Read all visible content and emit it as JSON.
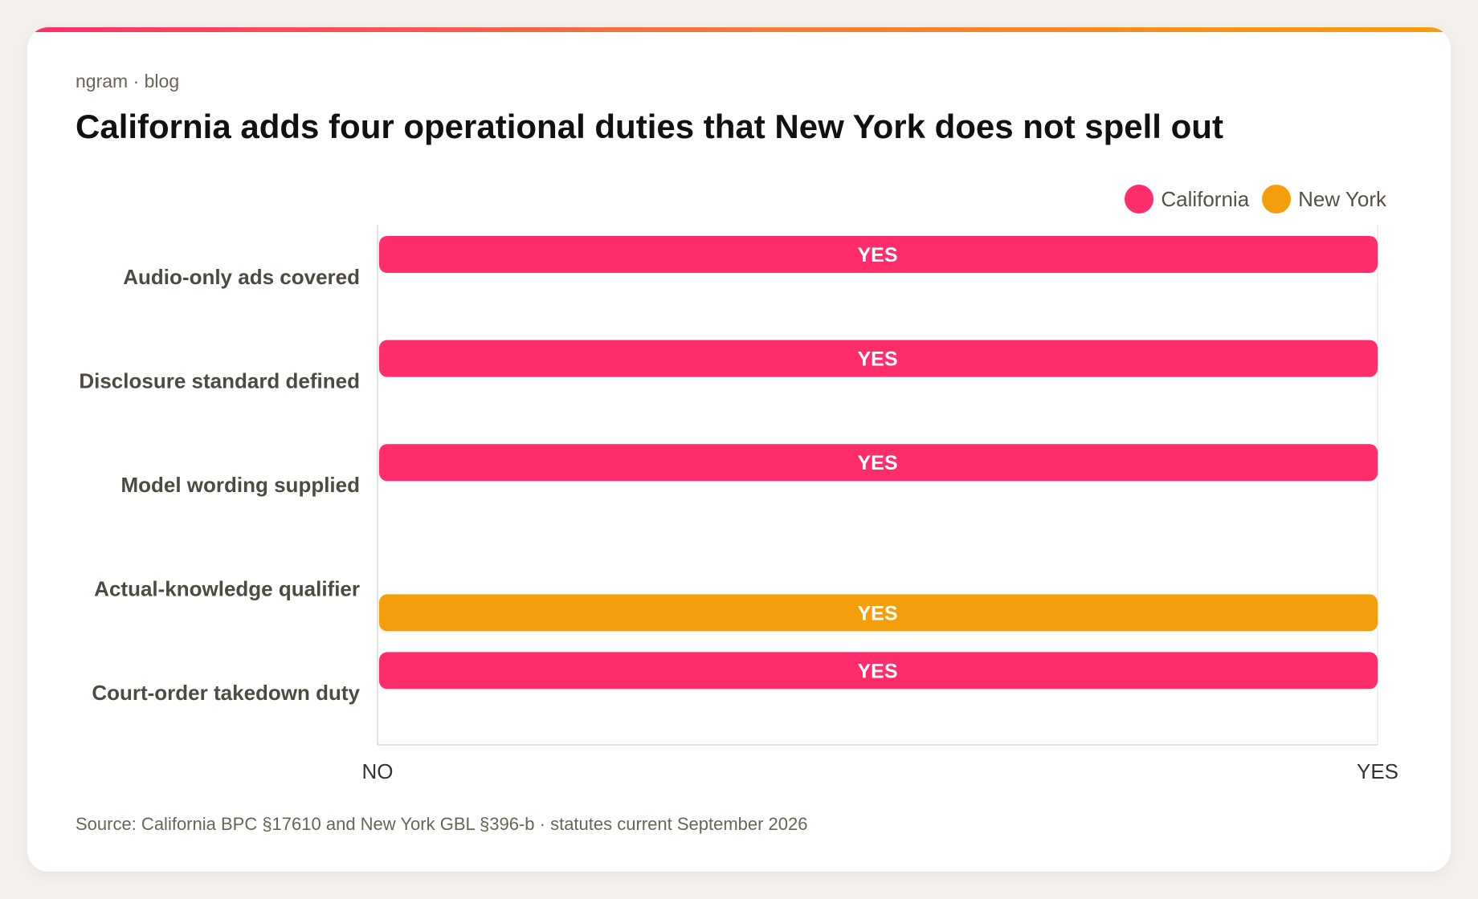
{
  "brand": "ngram · blog",
  "title": "California adds four operational duties that New York does not spell out",
  "source": "Source: California BPC §17610 and New York GBL §396-b · statutes current September 2026",
  "chart_data": {
    "type": "bar",
    "orientation": "horizontal",
    "categories": [
      "Audio-only ads covered",
      "Disclosure standard defined",
      "Model wording supplied",
      "Actual-knowledge qualifier",
      "Court-order takedown duty"
    ],
    "series": [
      {
        "name": "California",
        "color": "#ff2d6b",
        "values": [
          1,
          1,
          1,
          0,
          1
        ],
        "labels": [
          "YES",
          "YES",
          "YES",
          "",
          "YES"
        ]
      },
      {
        "name": "New York",
        "color": "#f59e0b",
        "values": [
          0,
          0,
          0,
          1,
          0
        ],
        "labels": [
          "",
          "",
          "",
          "YES",
          ""
        ]
      }
    ],
    "x_ticks": [
      "NO",
      "YES"
    ],
    "xlim": [
      0,
      1
    ],
    "legend_position": "top-right",
    "grid": false
  }
}
